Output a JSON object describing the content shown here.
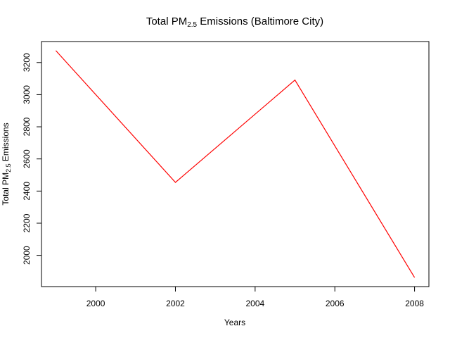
{
  "chart_data": {
    "type": "line",
    "title": {
      "main": "Total PM",
      "sub": "2.5",
      "rest": " Emissions (Baltimore City)"
    },
    "xlabel": "Years",
    "ylabel": {
      "main": "Total PM",
      "sub": "2.5",
      "rest": " Emissions"
    },
    "x": [
      1999,
      2002,
      2005,
      2008
    ],
    "series": [
      {
        "values": [
          3274,
          2454,
          3091,
          1862
        ],
        "color": "#ff0000"
      }
    ],
    "xlim": [
      1998.64,
      2008.36
    ],
    "ylim": [
      1805.5,
      3330.5
    ],
    "xticks": [
      2000,
      2002,
      2004,
      2006,
      2008
    ],
    "yticks": [
      2000,
      2200,
      2400,
      2600,
      2800,
      3000,
      3200
    ],
    "grid": false,
    "legend": "none"
  }
}
